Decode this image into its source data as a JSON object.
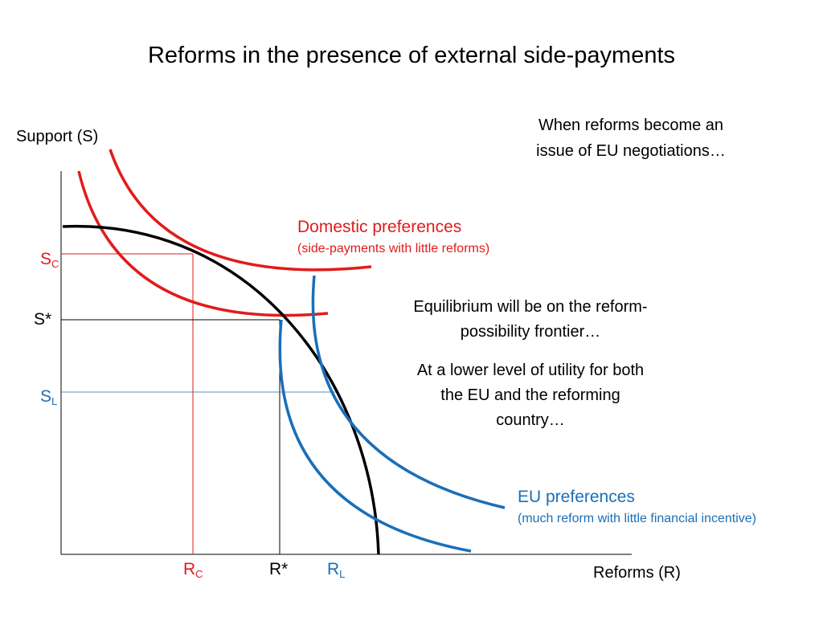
{
  "title": "Reforms in the presence of external side-payments",
  "context_note": {
    "line1": "When reforms become an",
    "line2": "issue of EU negotiations…"
  },
  "axes": {
    "y_title": "Support (S)",
    "x_title": "Reforms (R)"
  },
  "y_ticks": {
    "sc": {
      "main": "S",
      "sub": "C"
    },
    "s_star": {
      "main": "S*"
    },
    "sl": {
      "main": "S",
      "sub": "L"
    }
  },
  "x_ticks": {
    "rc": {
      "main": "R",
      "sub": "C"
    },
    "r_star": {
      "main": "R*"
    },
    "rl": {
      "main": "R",
      "sub": "L"
    }
  },
  "domestic_preferences": {
    "label": "Domestic preferences",
    "sublabel": "(side-payments with little reforms)",
    "color": "#e21b1b"
  },
  "eu_preferences": {
    "label": "EU preferences",
    "sublabel": "(much reform with little financial incentive)",
    "color": "#1a6fb8"
  },
  "frontier_color": "#000000",
  "notes": {
    "equilibrium": "Equilibrium will be on the reform-possibility frontier…",
    "utility": "At a lower level of utility for both the EU and the reforming country…"
  }
}
